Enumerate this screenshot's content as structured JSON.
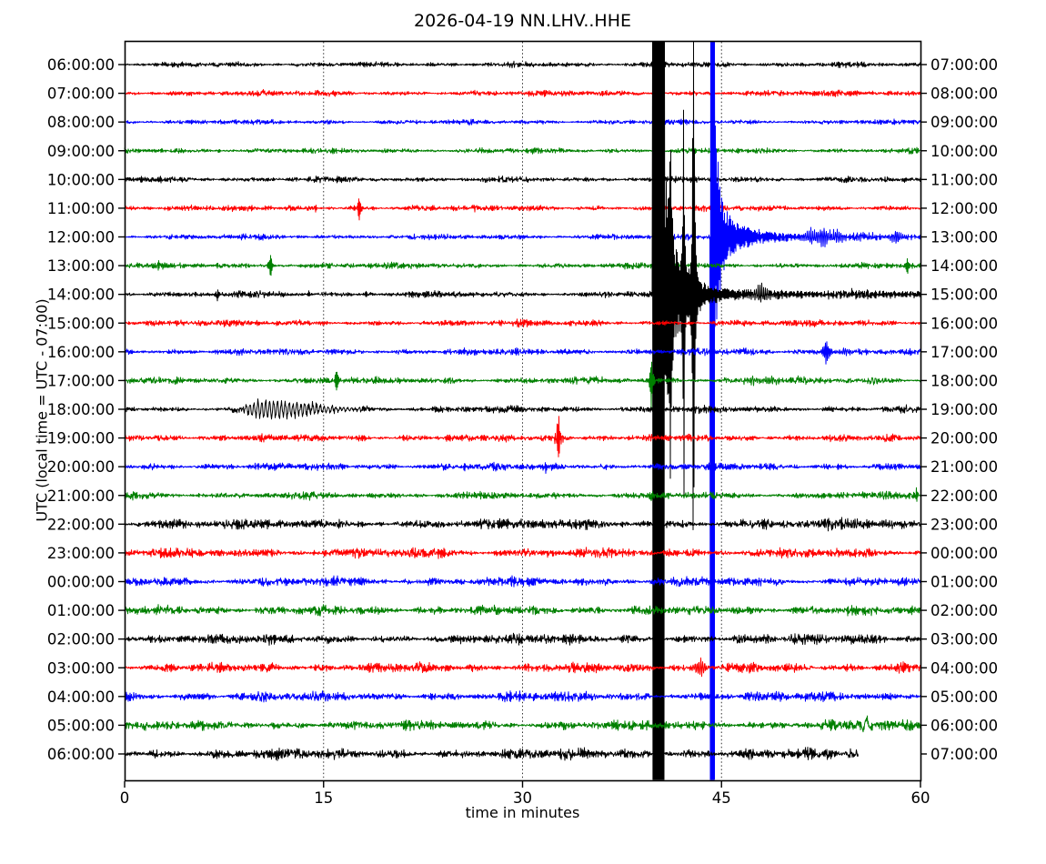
{
  "title": "2026-04-19 NN.LHV..HHE",
  "axes": {
    "x_label": "time in minutes",
    "y_label": "UTC (local time = UTC - 07:00)",
    "x_ticks": [
      0,
      15,
      30,
      45,
      60
    ],
    "x_grid": [
      15,
      30,
      45
    ],
    "x_range": [
      0,
      60
    ],
    "grid_style": "dotted-vertical"
  },
  "palette": {
    "black": "#000000",
    "red": "#ff0000",
    "blue": "#0000ff",
    "green": "#008000",
    "frame": "#000000"
  },
  "chart_data": {
    "type": "line",
    "variant": "helicorder-dayplot",
    "station_id": "NN.LHV..HHE",
    "date": "2026-04-19",
    "minutes_per_row": 60,
    "legend": "none",
    "major_events": [
      {
        "row_utc": "12:00:00",
        "time_min": 44.15,
        "desc": "clipped high-amplitude event; blue vertical stripe across plot, long decaying coda with aftershock bursts at ~51.7, 52.7, 53.7, 55.5, 58.2 min"
      },
      {
        "row_utc": "14:00:00",
        "time_min": 39.8,
        "desc": "clipped high-amplitude event; black vertical stripe across plot, secondary clipped spikes at ~41.2, 42.2, 42.9 min, coda bump at ~48 min"
      }
    ],
    "rows": [
      {
        "utc_left": "06:00:00",
        "local_right": "07:00:00",
        "color": "black",
        "noise": 1.2,
        "events": []
      },
      {
        "utc_left": "07:00:00",
        "local_right": "08:00:00",
        "color": "red",
        "noise": 1.3,
        "events": []
      },
      {
        "utc_left": "08:00:00",
        "local_right": "09:00:00",
        "color": "blue",
        "noise": 1.1,
        "events": []
      },
      {
        "utc_left": "09:00:00",
        "local_right": "10:00:00",
        "color": "green",
        "noise": 1.2,
        "events": [
          {
            "type": "spike",
            "t": 2.8,
            "a": 3
          },
          {
            "type": "spike",
            "t": 7.1,
            "a": 2.5
          }
        ]
      },
      {
        "utc_left": "10:00:00",
        "local_right": "11:00:00",
        "color": "black",
        "noise": 1.3,
        "events": []
      },
      {
        "utc_left": "11:00:00",
        "local_right": "12:00:00",
        "color": "red",
        "noise": 1.3,
        "events": [
          {
            "type": "spike",
            "t": 14.4,
            "a": 4
          },
          {
            "type": "spike",
            "t": 17.7,
            "a": 16
          }
        ]
      },
      {
        "utc_left": "12:00:00",
        "local_right": "13:00:00",
        "color": "blue",
        "noise": 1.2,
        "events": [
          {
            "type": "giant",
            "t": 44.15,
            "clip": 0.35,
            "a1": 120,
            "k1": 0.35,
            "a2": 30,
            "k2": 2.0,
            "floor": 1.5
          },
          {
            "type": "packet",
            "t": 51.7,
            "a": 9
          },
          {
            "type": "packet",
            "t": 52.7,
            "a": 12
          },
          {
            "type": "packet",
            "t": 53.7,
            "a": 8
          },
          {
            "type": "packet",
            "t": 55.5,
            "a": 5
          },
          {
            "type": "packet",
            "t": 58.2,
            "a": 9
          }
        ]
      },
      {
        "utc_left": "13:00:00",
        "local_right": "14:00:00",
        "color": "green",
        "noise": 1.3,
        "events": [
          {
            "type": "spike",
            "t": 2.5,
            "a": 5
          },
          {
            "type": "spike",
            "t": 7.0,
            "a": 4
          },
          {
            "type": "spike",
            "t": 8.3,
            "a": 3.5
          },
          {
            "type": "spike",
            "t": 11.0,
            "a": 16
          },
          {
            "type": "spike",
            "t": 59.0,
            "a": 10
          }
        ]
      },
      {
        "utc_left": "14:00:00",
        "local_right": "15:00:00",
        "color": "black",
        "noise": 1.4,
        "events": [
          {
            "type": "spike",
            "t": 7.0,
            "a": 7
          },
          {
            "type": "spike",
            "t": 13.9,
            "a": 3.5
          },
          {
            "type": "spike",
            "t": 18.2,
            "a": 3
          },
          {
            "type": "giant",
            "t": 39.8,
            "clip": 0.9,
            "a1": 160,
            "k1": 0.5,
            "a2": 25,
            "k2": 2.5,
            "floor": 2.5
          },
          {
            "type": "spike",
            "t": 41.15,
            "a": 250,
            "w": 0.05
          },
          {
            "type": "spike",
            "t": 42.15,
            "a": 320,
            "w": 0.05
          },
          {
            "type": "spike",
            "t": 42.9,
            "a": 520,
            "w": 0.06
          },
          {
            "type": "packet",
            "t": 48.0,
            "a": 11,
            "w": 0.5
          }
        ]
      },
      {
        "utc_left": "15:00:00",
        "local_right": "16:00:00",
        "color": "red",
        "noise": 1.4,
        "events": []
      },
      {
        "utc_left": "16:00:00",
        "local_right": "17:00:00",
        "color": "blue",
        "noise": 1.5,
        "events": [
          {
            "type": "spike",
            "t": 8.8,
            "a": 3
          },
          {
            "type": "spike",
            "t": 25.6,
            "a": 3
          },
          {
            "type": "packet",
            "t": 52.9,
            "a": 18,
            "w": 0.25,
            "f": 10
          },
          {
            "type": "packet",
            "t": 54.3,
            "a": 5,
            "w": 0.5
          }
        ]
      },
      {
        "utc_left": "17:00:00",
        "local_right": "18:00:00",
        "color": "green",
        "noise": 1.5,
        "events": [
          {
            "type": "spike",
            "t": 16.0,
            "a": 18
          },
          {
            "type": "spike",
            "t": 39.7,
            "a": 30
          },
          {
            "type": "packet",
            "t": 47.3,
            "a": 4,
            "w": 0.5
          },
          {
            "type": "packet",
            "t": 48.6,
            "a": 5,
            "w": 0.7
          },
          {
            "type": "tremor",
            "t": 55.8,
            "t1": 57.8,
            "a": 4.5,
            "f": 4
          }
        ]
      },
      {
        "utc_left": "18:00:00",
        "local_right": "19:00:00",
        "color": "black",
        "noise": 1.5,
        "events": [
          {
            "type": "tremor",
            "t": 8.8,
            "t1": 19.5,
            "a": 9,
            "f": 3.4
          },
          {
            "type": "spike",
            "t": 31.5,
            "a": 2.5
          }
        ]
      },
      {
        "utc_left": "19:00:00",
        "local_right": "20:00:00",
        "color": "red",
        "noise": 1.6,
        "events": [
          {
            "type": "spike",
            "t": 1.0,
            "a": 3
          },
          {
            "type": "spike",
            "t": 32.7,
            "a": 30
          },
          {
            "type": "packet",
            "t": 32.7,
            "a": 8,
            "w": 0.35,
            "f": 8
          }
        ]
      },
      {
        "utc_left": "20:00:00",
        "local_right": "21:00:00",
        "color": "blue",
        "noise": 1.6,
        "events": [
          {
            "type": "spike",
            "t": 25.6,
            "a": 4
          },
          {
            "type": "spike",
            "t": 31.7,
            "a": 8
          },
          {
            "type": "spike",
            "t": 53.8,
            "a": 5
          }
        ]
      },
      {
        "utc_left": "21:00:00",
        "local_right": "22:00:00",
        "color": "green",
        "noise": 1.6,
        "events": [
          {
            "type": "spike",
            "t": 39.7,
            "a": 7
          },
          {
            "type": "spike",
            "t": 59.7,
            "a": 9
          }
        ]
      },
      {
        "utc_left": "22:00:00",
        "local_right": "23:00:00",
        "color": "black",
        "noise": 2.3,
        "events": [
          {
            "type": "packet",
            "t": 54.9,
            "a": 4,
            "w": 0.6
          },
          {
            "type": "packet",
            "t": 57.5,
            "a": 4,
            "w": 0.6
          }
        ]
      },
      {
        "utc_left": "23:00:00",
        "local_right": "00:00:00",
        "color": "red",
        "noise": 2.2,
        "events": [
          {
            "type": "spike",
            "t": 5.3,
            "a": 3.5
          },
          {
            "type": "spike",
            "t": 14.3,
            "a": 3.5
          },
          {
            "type": "spike",
            "t": 31.9,
            "a": 3.5
          }
        ]
      },
      {
        "utc_left": "00:00:00",
        "local_right": "01:00:00",
        "color": "blue",
        "noise": 2.1,
        "events": [
          {
            "type": "spike",
            "t": 23.0,
            "a": 3
          }
        ]
      },
      {
        "utc_left": "01:00:00",
        "local_right": "02:00:00",
        "color": "green",
        "noise": 2.1,
        "events": [
          {
            "type": "spike",
            "t": 3.2,
            "a": 4
          },
          {
            "type": "spike",
            "t": 54.6,
            "a": 5
          }
        ]
      },
      {
        "utc_left": "02:00:00",
        "local_right": "03:00:00",
        "color": "black",
        "noise": 2.2,
        "events": [
          {
            "type": "spike",
            "t": 26.3,
            "a": 5
          }
        ]
      },
      {
        "utc_left": "03:00:00",
        "local_right": "04:00:00",
        "color": "red",
        "noise": 2.2,
        "events": [
          {
            "type": "packet",
            "t": 43.4,
            "a": 13,
            "w": 0.3,
            "f": 7
          }
        ]
      },
      {
        "utc_left": "04:00:00",
        "local_right": "05:00:00",
        "color": "blue",
        "noise": 2.1,
        "events": [
          {
            "type": "spike",
            "t": 23.2,
            "a": 5
          },
          {
            "type": "spike",
            "t": 29.8,
            "a": 4
          }
        ]
      },
      {
        "utc_left": "05:00:00",
        "local_right": "06:00:00",
        "color": "green",
        "noise": 2.2,
        "events": [
          {
            "type": "blob",
            "t": 55.9,
            "a": 7
          }
        ]
      },
      {
        "utc_left": "06:00:00",
        "local_right": "07:00:00",
        "color": "black",
        "noise": 2.4,
        "end": 55.3,
        "events": []
      }
    ]
  }
}
